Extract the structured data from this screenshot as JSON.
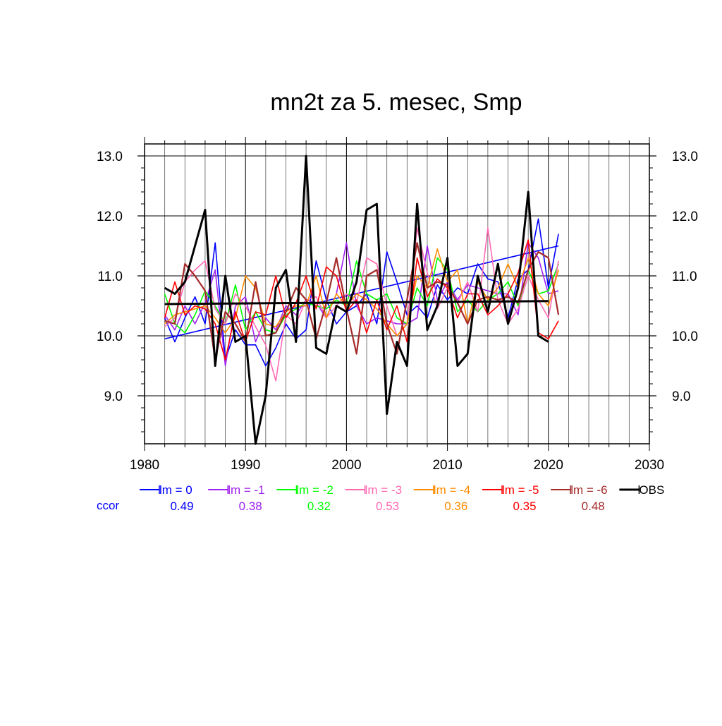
{
  "chart_data": {
    "type": "line",
    "title": "mn2t za 5. mesec, Smp",
    "xlabel": "",
    "ylabel": "",
    "xlim": [
      1980,
      2030
    ],
    "ylim": [
      8.2,
      13.2
    ],
    "x_ticks": [
      "1980",
      "1990",
      "2000",
      "2010",
      "2020",
      "2030"
    ],
    "y_ticks": [
      "9.0",
      "10.0",
      "11.0",
      "12.0",
      "13.0"
    ],
    "grid": true,
    "legend_placement": "bottom",
    "ccor_label": "ccor",
    "x": [
      1982,
      1983,
      1984,
      1985,
      1986,
      1987,
      1988,
      1989,
      1990,
      1991,
      1992,
      1993,
      1994,
      1995,
      1996,
      1997,
      1998,
      1999,
      2000,
      2001,
      2002,
      2003,
      2004,
      2005,
      2006,
      2007,
      2008,
      2009,
      2010,
      2011,
      2012,
      2013,
      2014,
      2015,
      2016,
      2017,
      2018,
      2019,
      2020,
      2021
    ],
    "series": [
      {
        "name": "lm = 0",
        "color": "#0000ff",
        "ccor": "0.49",
        "width": 1.6,
        "values": [
          10.3,
          9.9,
          10.3,
          10.65,
          10.2,
          11.55,
          9.6,
          10.1,
          9.85,
          9.85,
          9.5,
          9.8,
          10.2,
          9.95,
          10.1,
          11.25,
          10.6,
          10.2,
          10.4,
          10.5,
          10.7,
          10.2,
          11.4,
          10.9,
          10.35,
          10.5,
          10.3,
          10.85,
          10.6,
          10.8,
          10.7,
          11.2,
          10.95,
          10.9,
          10.3,
          10.95,
          11.1,
          11.95,
          10.8,
          11.7
        ],
        "trend": [
          9.95,
          11.5
        ]
      },
      {
        "name": "lm = -1",
        "color": "#a020f0",
        "ccor": "0.38",
        "width": 1.6,
        "values": [
          10.35,
          10.1,
          10.5,
          10.2,
          10.55,
          11.1,
          9.5,
          10.5,
          10.65,
          9.9,
          10.3,
          10.1,
          10.5,
          10.35,
          10.6,
          10.55,
          10.3,
          10.7,
          11.55,
          10.5,
          10.2,
          10.3,
          10.25,
          10.2,
          10.2,
          10.3,
          11.5,
          10.6,
          10.9,
          10.6,
          10.85,
          10.8,
          10.75,
          10.7,
          10.7,
          10.35,
          11.55,
          11.3,
          10.7,
          10.75
        ]
      },
      {
        "name": "lm = -2",
        "color": "#00ff00",
        "ccor": "0.32",
        "width": 1.6,
        "values": [
          10.7,
          10.2,
          10.05,
          10.35,
          10.75,
          10.5,
          10.2,
          10.85,
          10.1,
          10.4,
          10.1,
          10.05,
          10.35,
          10.45,
          10.55,
          10.5,
          10.45,
          10.6,
          10.5,
          11.25,
          10.7,
          10.6,
          10.7,
          10.3,
          10.2,
          10.8,
          10.5,
          11.3,
          11.1,
          10.4,
          10.6,
          10.4,
          10.6,
          10.7,
          10.9,
          10.5,
          11.1,
          10.7,
          10.75,
          11.2
        ]
      },
      {
        "name": "lm = -3",
        "color": "#ff69b4",
        "ccor": "0.53",
        "width": 1.6,
        "values": [
          10.15,
          10.3,
          10.9,
          11.1,
          11.25,
          10.45,
          10.2,
          10.7,
          10.5,
          10.15,
          9.85,
          9.25,
          10.35,
          10.2,
          10.6,
          10.65,
          10.3,
          10.5,
          10.7,
          10.55,
          11.3,
          11.2,
          10.5,
          10.0,
          10.2,
          11.8,
          11.05,
          10.45,
          10.8,
          10.55,
          10.9,
          10.4,
          11.8,
          10.6,
          10.2,
          10.45,
          11.0,
          10.6,
          10.3,
          11.25
        ]
      },
      {
        "name": "lm = -4",
        "color": "#ff8c00",
        "ccor": "0.36",
        "width": 1.6,
        "values": [
          10.2,
          10.35,
          10.4,
          10.45,
          10.5,
          10.3,
          10.05,
          10.3,
          11.0,
          10.8,
          10.2,
          10.15,
          10.4,
          10.5,
          10.5,
          11.0,
          10.3,
          10.7,
          10.5,
          10.7,
          10.6,
          10.45,
          10.2,
          10.0,
          10.2,
          11.0,
          10.8,
          11.45,
          10.9,
          11.1,
          10.2,
          10.9,
          10.6,
          10.8,
          11.2,
          10.8,
          11.3,
          10.7,
          10.5,
          11.1
        ]
      },
      {
        "name": "lm = -5",
        "color": "#ff0000",
        "ccor": "0.35",
        "width": 1.6,
        "values": [
          10.3,
          10.9,
          10.35,
          10.5,
          10.45,
          10.2,
          9.6,
          10.4,
          9.9,
          10.4,
          10.35,
          11.0,
          10.3,
          10.55,
          11.0,
          10.45,
          11.15,
          11.0,
          10.4,
          10.6,
          10.05,
          10.6,
          10.1,
          10.5,
          9.9,
          11.3,
          10.65,
          10.95,
          10.8,
          10.3,
          10.7,
          10.7,
          10.35,
          10.5,
          10.7,
          11.05,
          11.6,
          10.05,
          9.95,
          10.25
        ]
      },
      {
        "name": "lm = -6",
        "color": "#a52a2a",
        "ccor": "0.48",
        "width": 2.2,
        "values": [
          10.25,
          10.2,
          11.2,
          11.0,
          10.75,
          9.6,
          10.4,
          10.2,
          9.9,
          10.9,
          10.0,
          10.05,
          10.4,
          10.8,
          10.6,
          9.95,
          10.55,
          11.3,
          10.45,
          9.7,
          11.0,
          11.1,
          10.2,
          9.7,
          10.6,
          11.55,
          10.8,
          10.9,
          10.85,
          10.55,
          10.2,
          10.6,
          10.65,
          10.6,
          10.65,
          10.55,
          11.1,
          11.4,
          11.3,
          10.35
        ]
      },
      {
        "name": "OBS",
        "color": "#000000",
        "ccor": "",
        "width": 3,
        "values": [
          10.8,
          10.7,
          10.9,
          11.5,
          12.1,
          9.5,
          11.0,
          9.9,
          10.0,
          8.2,
          9.0,
          10.8,
          11.1,
          9.9,
          13.0,
          9.8,
          9.7,
          10.5,
          10.4,
          10.9,
          12.1,
          12.2,
          8.7,
          9.9,
          9.5,
          12.2,
          10.1,
          10.5,
          11.3,
          9.5,
          9.7,
          11.0,
          10.4,
          11.2,
          10.2,
          10.8,
          12.4,
          10.0,
          9.9,
          null
        ],
        "trend": [
          10.53,
          10.58
        ]
      }
    ]
  }
}
